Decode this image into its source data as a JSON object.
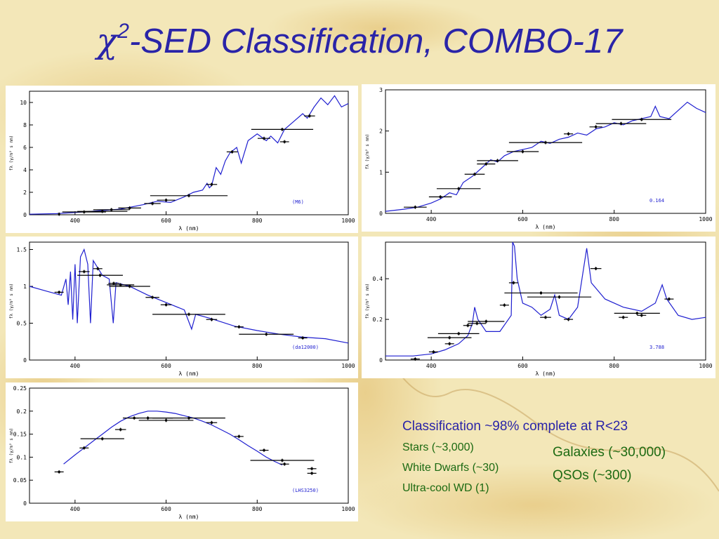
{
  "slide": {
    "title_symbol": "χ",
    "title_superscript": "2",
    "title_rest": "-SED Classification, COMBO-17"
  },
  "classification": {
    "headline": "Classification ~98% complete at R<23",
    "left_items": [
      "Stars (~3,000)",
      "White Dwarfs (~30)",
      "Ultra-cool WD (1)"
    ],
    "right_items": [
      "Galaxies (~30,000)",
      "QSOs (~300)"
    ]
  },
  "colors": {
    "title": "#2a24a8",
    "headline": "#2a24a8",
    "items": "#1c6a12",
    "spectrum": "#1f1fd0",
    "filter_bar": "#000000",
    "background": "#f3e7b8"
  },
  "chart_data": [
    {
      "type": "line",
      "label": "(M6)",
      "xlabel": "λ (nm)",
      "ylabel": "fλ (γ/m² s nm)",
      "xlim": [
        300,
        1000
      ],
      "ylim": [
        0,
        11
      ],
      "xticks": [
        400,
        600,
        800,
        1000
      ],
      "yticks": [
        0,
        2,
        4,
        6,
        8,
        10
      ],
      "spectrum": [
        [
          300,
          0.05
        ],
        [
          360,
          0.1
        ],
        [
          400,
          0.2
        ],
        [
          450,
          0.35
        ],
        [
          500,
          0.5
        ],
        [
          550,
          0.9
        ],
        [
          580,
          1.2
        ],
        [
          610,
          1.1
        ],
        [
          640,
          1.6
        ],
        [
          660,
          2.0
        ],
        [
          680,
          2.2
        ],
        [
          690,
          2.8
        ],
        [
          695,
          2.4
        ],
        [
          700,
          2.6
        ],
        [
          710,
          4.2
        ],
        [
          720,
          3.6
        ],
        [
          730,
          4.8
        ],
        [
          740,
          5.5
        ],
        [
          755,
          6.0
        ],
        [
          765,
          4.6
        ],
        [
          780,
          6.6
        ],
        [
          800,
          7.2
        ],
        [
          820,
          6.6
        ],
        [
          830,
          7.0
        ],
        [
          845,
          6.4
        ],
        [
          860,
          7.6
        ],
        [
          880,
          8.3
        ],
        [
          900,
          9.0
        ],
        [
          910,
          8.6
        ],
        [
          925,
          9.6
        ],
        [
          940,
          10.4
        ],
        [
          955,
          9.8
        ],
        [
          970,
          10.6
        ],
        [
          985,
          9.6
        ],
        [
          1000,
          9.9
        ]
      ],
      "photometry": [
        [
          365,
          0.05,
          0
        ],
        [
          420,
          0.25,
          48
        ],
        [
          460,
          0.3,
          55
        ],
        [
          480,
          0.45,
          40
        ],
        [
          520,
          0.6,
          25
        ],
        [
          570,
          1.0,
          18
        ],
        [
          600,
          1.3,
          20
        ],
        [
          650,
          1.7,
          85
        ],
        [
          700,
          2.7,
          12
        ],
        [
          745,
          5.6,
          12
        ],
        [
          815,
          6.8,
          14
        ],
        [
          855,
          7.6,
          68
        ],
        [
          860,
          6.5,
          10
        ],
        [
          915,
          8.8,
          12
        ]
      ]
    },
    {
      "type": "line",
      "label": "0.164",
      "xlabel": "λ (nm)",
      "ylabel": "fλ (γ/m² s nm)",
      "xlim": [
        300,
        1000
      ],
      "ylim": [
        0,
        3
      ],
      "xticks": [
        400,
        600,
        800,
        1000
      ],
      "yticks": [
        0,
        1,
        2,
        3
      ],
      "spectrum": [
        [
          300,
          0.05
        ],
        [
          340,
          0.1
        ],
        [
          370,
          0.15
        ],
        [
          400,
          0.25
        ],
        [
          420,
          0.35
        ],
        [
          440,
          0.5
        ],
        [
          455,
          0.45
        ],
        [
          470,
          0.75
        ],
        [
          490,
          0.9
        ],
        [
          510,
          1.1
        ],
        [
          530,
          1.3
        ],
        [
          545,
          1.25
        ],
        [
          560,
          1.4
        ],
        [
          580,
          1.5
        ],
        [
          600,
          1.55
        ],
        [
          620,
          1.6
        ],
        [
          640,
          1.75
        ],
        [
          660,
          1.7
        ],
        [
          680,
          1.8
        ],
        [
          700,
          1.85
        ],
        [
          720,
          1.95
        ],
        [
          740,
          1.9
        ],
        [
          760,
          2.05
        ],
        [
          780,
          2.1
        ],
        [
          800,
          2.2
        ],
        [
          820,
          2.15
        ],
        [
          840,
          2.25
        ],
        [
          860,
          2.3
        ],
        [
          880,
          2.35
        ],
        [
          890,
          2.6
        ],
        [
          900,
          2.35
        ],
        [
          920,
          2.3
        ],
        [
          940,
          2.5
        ],
        [
          960,
          2.7
        ],
        [
          980,
          2.55
        ],
        [
          1000,
          2.45
        ]
      ],
      "photometry": [
        [
          365,
          0.15,
          25
        ],
        [
          420,
          0.4,
          25
        ],
        [
          460,
          0.6,
          48
        ],
        [
          495,
          0.95,
          22
        ],
        [
          520,
          1.2,
          20
        ],
        [
          545,
          1.28,
          45
        ],
        [
          600,
          1.5,
          35
        ],
        [
          650,
          1.72,
          80
        ],
        [
          700,
          1.93,
          10
        ],
        [
          760,
          2.1,
          14
        ],
        [
          815,
          2.18,
          55
        ],
        [
          860,
          2.28,
          65
        ]
      ]
    },
    {
      "type": "line",
      "label": "(da12000)",
      "xlabel": "λ (nm)",
      "ylabel": "fλ (γ/m² s nm)",
      "xlim": [
        300,
        1000
      ],
      "ylim": [
        0,
        1.6
      ],
      "xticks": [
        400,
        600,
        800,
        1000
      ],
      "yticks": [
        0,
        0.5,
        1,
        1.5
      ],
      "spectrum": [
        [
          300,
          1.0
        ],
        [
          340,
          0.93
        ],
        [
          370,
          0.88
        ],
        [
          380,
          1.1
        ],
        [
          385,
          0.75
        ],
        [
          390,
          1.2
        ],
        [
          395,
          0.55
        ],
        [
          400,
          1.3
        ],
        [
          405,
          0.5
        ],
        [
          412,
          1.4
        ],
        [
          420,
          1.5
        ],
        [
          428,
          1.3
        ],
        [
          434,
          0.5
        ],
        [
          440,
          1.35
        ],
        [
          460,
          1.15
        ],
        [
          475,
          1.1
        ],
        [
          484,
          0.5
        ],
        [
          490,
          1.05
        ],
        [
          520,
          1.0
        ],
        [
          560,
          0.88
        ],
        [
          600,
          0.78
        ],
        [
          640,
          0.68
        ],
        [
          656,
          0.42
        ],
        [
          665,
          0.62
        ],
        [
          700,
          0.56
        ],
        [
          750,
          0.46
        ],
        [
          800,
          0.4
        ],
        [
          850,
          0.35
        ],
        [
          900,
          0.31
        ],
        [
          950,
          0.29
        ],
        [
          1000,
          0.23
        ]
      ],
      "photometry": [
        [
          365,
          0.92,
          10
        ],
        [
          420,
          1.2,
          12
        ],
        [
          450,
          1.24,
          10
        ],
        [
          455,
          1.15,
          50
        ],
        [
          485,
          1.04,
          12
        ],
        [
          500,
          1.02,
          30
        ],
        [
          520,
          1.0,
          45
        ],
        [
          570,
          0.85,
          15
        ],
        [
          600,
          0.75,
          12
        ],
        [
          650,
          0.62,
          80
        ],
        [
          700,
          0.55,
          12
        ],
        [
          760,
          0.45,
          10
        ],
        [
          820,
          0.35,
          60
        ],
        [
          900,
          0.3,
          10
        ]
      ]
    },
    {
      "type": "line",
      "label": "3.788",
      "xlabel": "λ (nm)",
      "ylabel": "fλ (γ/m² s nm)",
      "xlim": [
        300,
        1000
      ],
      "ylim": [
        0,
        0.58
      ],
      "xticks": [
        400,
        600,
        800,
        1000
      ],
      "yticks": [
        0,
        0.2,
        0.4
      ],
      "spectrum": [
        [
          300,
          0.02
        ],
        [
          360,
          0.02
        ],
        [
          400,
          0.03
        ],
        [
          430,
          0.05
        ],
        [
          460,
          0.08
        ],
        [
          480,
          0.12
        ],
        [
          490,
          0.18
        ],
        [
          495,
          0.26
        ],
        [
          502,
          0.2
        ],
        [
          520,
          0.14
        ],
        [
          550,
          0.14
        ],
        [
          575,
          0.22
        ],
        [
          578,
          0.6
        ],
        [
          582,
          0.56
        ],
        [
          588,
          0.4
        ],
        [
          600,
          0.28
        ],
        [
          620,
          0.26
        ],
        [
          640,
          0.22
        ],
        [
          660,
          0.25
        ],
        [
          670,
          0.32
        ],
        [
          680,
          0.22
        ],
        [
          700,
          0.2
        ],
        [
          720,
          0.26
        ],
        [
          740,
          0.55
        ],
        [
          750,
          0.38
        ],
        [
          780,
          0.3
        ],
        [
          820,
          0.26
        ],
        [
          860,
          0.24
        ],
        [
          890,
          0.28
        ],
        [
          905,
          0.37
        ],
        [
          915,
          0.3
        ],
        [
          940,
          0.22
        ],
        [
          970,
          0.2
        ],
        [
          1000,
          0.21
        ]
      ],
      "photometry": [
        [
          365,
          0.005,
          10
        ],
        [
          405,
          0.04,
          10
        ],
        [
          440,
          0.08,
          10
        ],
        [
          440,
          0.11,
          48
        ],
        [
          460,
          0.13,
          45
        ],
        [
          480,
          0.17,
          10
        ],
        [
          500,
          0.18,
          20
        ],
        [
          520,
          0.19,
          40
        ],
        [
          560,
          0.27,
          10
        ],
        [
          580,
          0.38,
          10
        ],
        [
          640,
          0.33,
          80
        ],
        [
          680,
          0.31,
          70
        ],
        [
          650,
          0.21,
          12
        ],
        [
          700,
          0.2,
          10
        ],
        [
          760,
          0.45,
          12
        ],
        [
          820,
          0.21,
          10
        ],
        [
          850,
          0.23,
          50
        ],
        [
          860,
          0.22,
          10
        ],
        [
          920,
          0.3,
          10
        ]
      ]
    },
    {
      "type": "line",
      "label": "(LHS3250)",
      "xlabel": "λ (nm)",
      "ylabel": "fλ (γ/m² s nm)",
      "xlim": [
        300,
        1000
      ],
      "ylim": [
        0,
        0.25
      ],
      "xticks": [
        400,
        600,
        800,
        1000
      ],
      "yticks": [
        0,
        0.05,
        0.1,
        0.15,
        0.2,
        0.25
      ],
      "spectrum": [
        [
          375,
          0.085
        ],
        [
          400,
          0.105
        ],
        [
          420,
          0.12
        ],
        [
          440,
          0.135
        ],
        [
          460,
          0.15
        ],
        [
          480,
          0.165
        ],
        [
          500,
          0.178
        ],
        [
          520,
          0.188
        ],
        [
          540,
          0.195
        ],
        [
          560,
          0.2
        ],
        [
          580,
          0.2
        ],
        [
          600,
          0.198
        ],
        [
          620,
          0.195
        ],
        [
          640,
          0.19
        ],
        [
          660,
          0.185
        ],
        [
          680,
          0.178
        ],
        [
          700,
          0.17
        ],
        [
          720,
          0.16
        ],
        [
          740,
          0.15
        ],
        [
          760,
          0.138
        ],
        [
          780,
          0.125
        ],
        [
          800,
          0.113
        ],
        [
          820,
          0.1
        ],
        [
          840,
          0.09
        ],
        [
          855,
          0.083
        ]
      ],
      "photometry": [
        [
          365,
          0.068,
          10
        ],
        [
          420,
          0.12,
          10
        ],
        [
          460,
          0.14,
          48
        ],
        [
          500,
          0.16,
          12
        ],
        [
          530,
          0.185,
          10
        ],
        [
          560,
          0.185,
          55
        ],
        [
          600,
          0.18,
          60
        ],
        [
          650,
          0.185,
          80
        ],
        [
          700,
          0.175,
          12
        ],
        [
          760,
          0.145,
          10
        ],
        [
          815,
          0.115,
          10
        ],
        [
          855,
          0.093,
          70
        ],
        [
          860,
          0.085,
          10
        ],
        [
          920,
          0.065,
          10
        ],
        [
          920,
          0.075,
          10
        ]
      ]
    }
  ]
}
